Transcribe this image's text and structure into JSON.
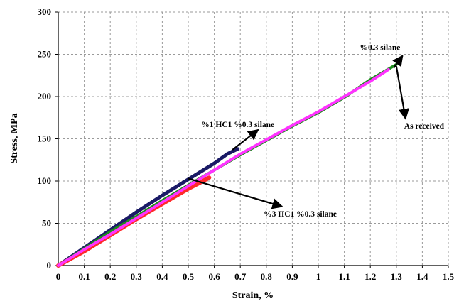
{
  "chart_data": {
    "type": "line",
    "xlabel": "Strain, %",
    "ylabel": "Stress, MPa",
    "xlim": [
      0,
      1.5
    ],
    "ylim": [
      0,
      300
    ],
    "xticks": [
      "0",
      "0.1",
      "0.2",
      "0.3",
      "0.4",
      "0.5",
      "0.6",
      "0.7",
      "0.8",
      "0.9",
      "1",
      "1.1",
      "1.2",
      "1.3",
      "1.4",
      "1.5"
    ],
    "yticks": [
      "0",
      "50",
      "100",
      "150",
      "200",
      "250",
      "300"
    ],
    "grid": true,
    "legend": "none",
    "series": [
      {
        "color": "#1a1a66",
        "points": [
          [
            0,
            0
          ],
          [
            0.1,
            21
          ],
          [
            0.2,
            42
          ],
          [
            0.3,
            63
          ],
          [
            0.4,
            83
          ],
          [
            0.5,
            102
          ],
          [
            0.6,
            121
          ],
          [
            0.65,
            132
          ],
          [
            0.69,
            138
          ]
        ]
      },
      {
        "color": "#ff2a2a",
        "points": [
          [
            0,
            0
          ],
          [
            0.1,
            17
          ],
          [
            0.2,
            36
          ],
          [
            0.3,
            55
          ],
          [
            0.4,
            73
          ],
          [
            0.5,
            91
          ],
          [
            0.55,
            99
          ],
          [
            0.58,
            104
          ]
        ]
      },
      {
        "color": "#1a8c1a",
        "points": [
          [
            0,
            0
          ],
          [
            0.1,
            20
          ],
          [
            0.2,
            40
          ],
          [
            0.3,
            58
          ],
          [
            0.4,
            77
          ],
          [
            0.5,
            95
          ],
          [
            0.6,
            113
          ],
          [
            0.7,
            131
          ],
          [
            0.8,
            148
          ],
          [
            0.9,
            165
          ],
          [
            1.0,
            181
          ],
          [
            1.1,
            199
          ],
          [
            1.2,
            220
          ],
          [
            1.3,
            238
          ]
        ]
      },
      {
        "color": "#ff33ff",
        "points": [
          [
            0,
            0
          ],
          [
            0.1,
            19
          ],
          [
            0.2,
            37
          ],
          [
            0.3,
            56
          ],
          [
            0.4,
            75
          ],
          [
            0.5,
            94
          ],
          [
            0.6,
            113
          ],
          [
            0.7,
            132
          ],
          [
            0.8,
            149
          ],
          [
            0.9,
            166
          ],
          [
            1.0,
            182
          ],
          [
            1.1,
            200
          ],
          [
            1.2,
            218
          ],
          [
            1.27,
            232
          ]
        ]
      }
    ],
    "annotations": [
      {
        "text": "%0.3 silane",
        "x": 1.16,
        "y": 255,
        "arrow_to": [
          1.29,
          234
        ]
      },
      {
        "text": "As received",
        "x": 1.33,
        "y": 162,
        "arrow_to": [
          1.3,
          236
        ]
      },
      {
        "text": "%1 HC1 %0.3 silane",
        "x": 0.55,
        "y": 164,
        "arrow_to": [
          0.67,
          137
        ]
      },
      {
        "text": "%3 HC1 %0.3 silane",
        "x": 0.79,
        "y": 58,
        "arrow_to": [
          0.5,
          103
        ]
      }
    ]
  }
}
